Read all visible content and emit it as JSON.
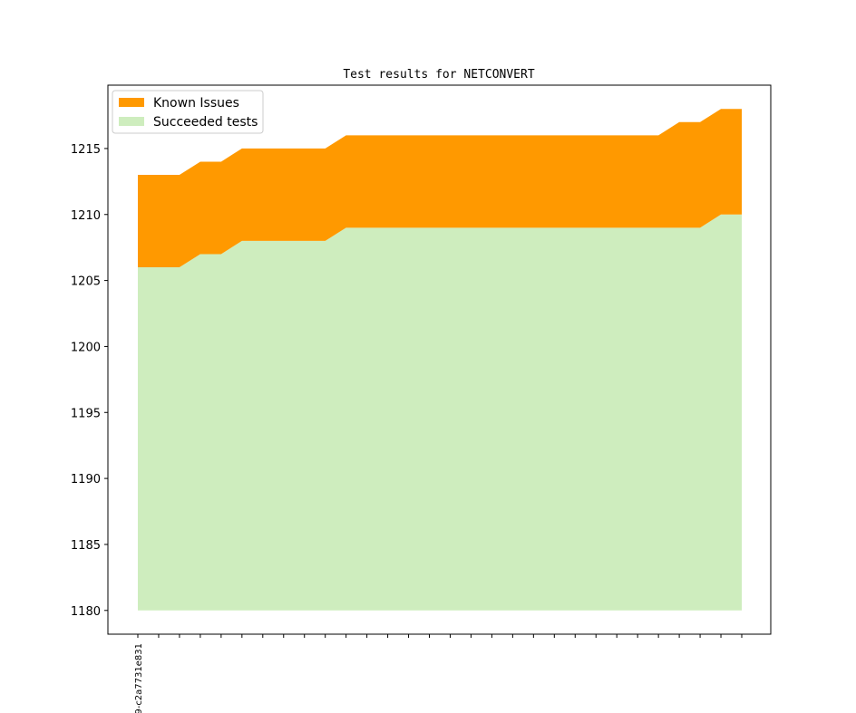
{
  "chart_data": {
    "type": "area",
    "title": "Test results for NETCONVERT",
    "xlabel": "",
    "ylabel": "",
    "x_tick_labels": [
      "9-c2a7731e831"
    ],
    "ylim": [
      1178.2,
      1219.8
    ],
    "yticks": [
      1180,
      1185,
      1190,
      1195,
      1200,
      1205,
      1210,
      1215
    ],
    "baseline": 1180,
    "grid": false,
    "legend_position": "top-left",
    "series": [
      {
        "name": "Known Issues",
        "color": "#ff9900",
        "values": [
          1213,
          1213,
          1213,
          1214,
          1214,
          1215,
          1215,
          1215,
          1215,
          1215,
          1216,
          1216,
          1216,
          1216,
          1216,
          1216,
          1216,
          1216,
          1216,
          1216,
          1216,
          1216,
          1216,
          1216,
          1216,
          1216,
          1217,
          1217,
          1218,
          1218
        ]
      },
      {
        "name": "Succeeded tests",
        "color": "#ceedbe",
        "values": [
          1206,
          1206,
          1206,
          1207,
          1207,
          1208,
          1208,
          1208,
          1208,
          1208,
          1209,
          1209,
          1209,
          1209,
          1209,
          1209,
          1209,
          1209,
          1209,
          1209,
          1209,
          1209,
          1209,
          1209,
          1209,
          1209,
          1209,
          1209,
          1210,
          1210
        ]
      }
    ]
  }
}
